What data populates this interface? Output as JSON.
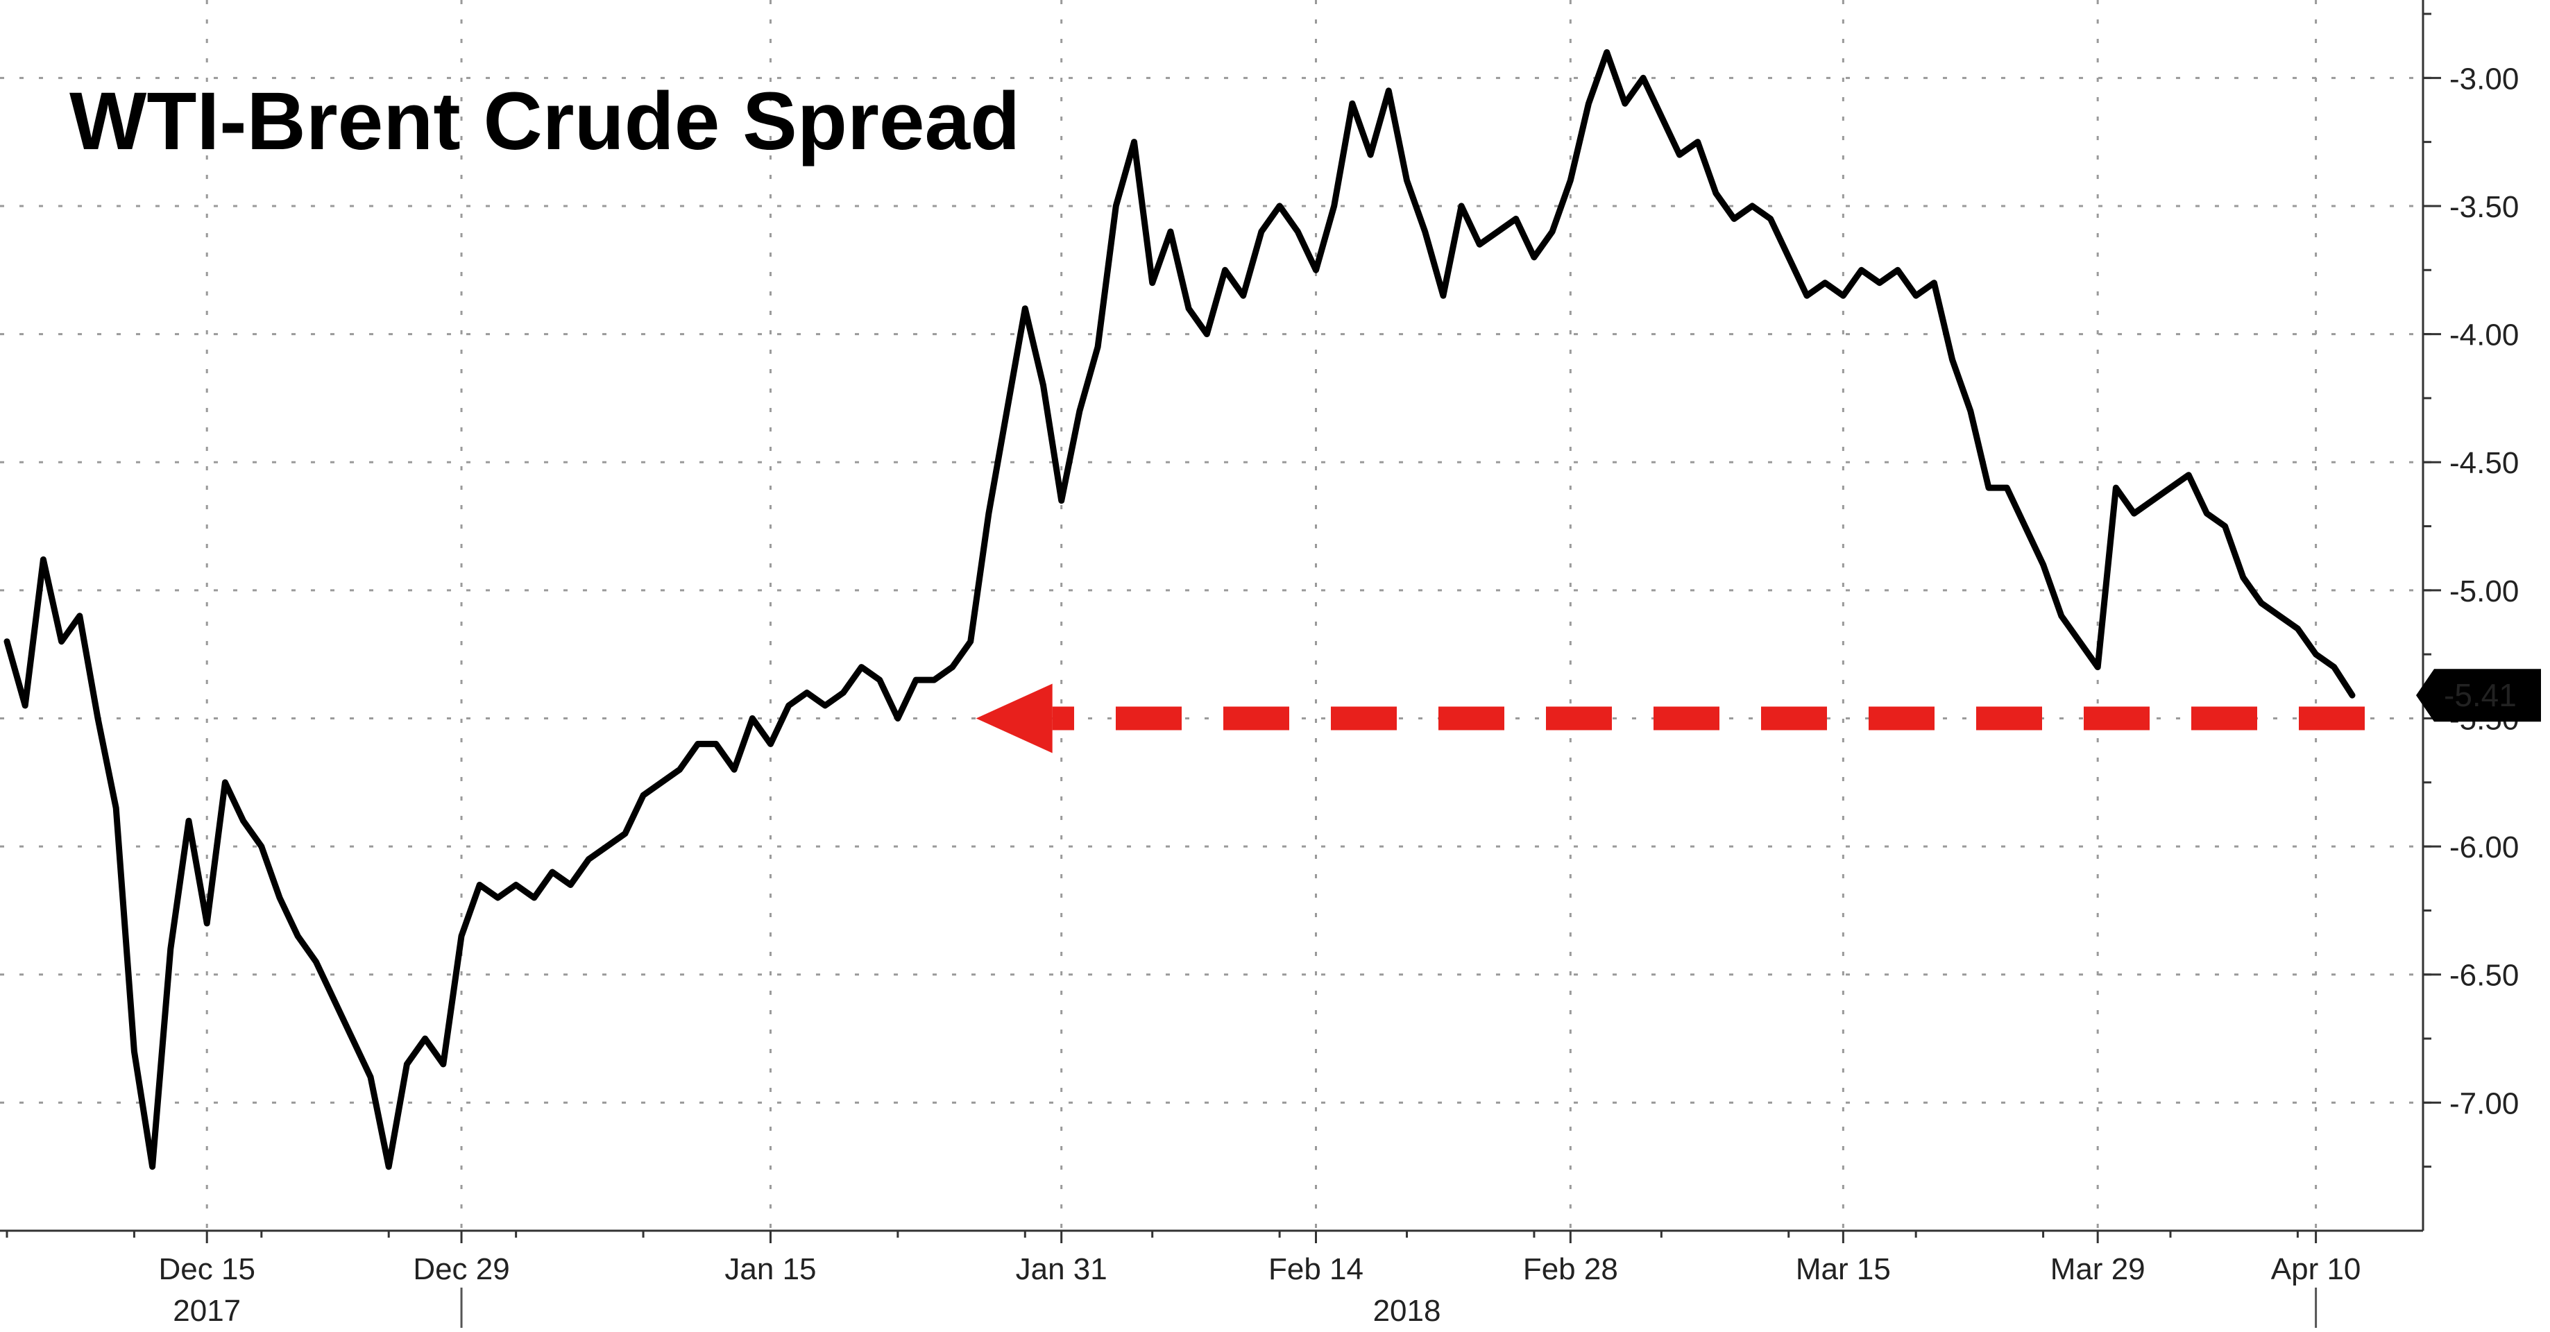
{
  "chart_data": {
    "type": "line",
    "title": "WTI-Brent Crude Spread",
    "xlabel": "",
    "ylabel": "",
    "ylim": [
      -7.5,
      -2.75
    ],
    "y_ticks": [
      -3.0,
      -3.5,
      -4.0,
      -4.5,
      -5.0,
      -5.5,
      -6.0,
      -6.5,
      -7.0
    ],
    "y_tick_labels": [
      "-3.00",
      "-3.50",
      "-4.00",
      "-4.50",
      "-5.00",
      "-5.50",
      "-6.00",
      "-6.50",
      "-7.00"
    ],
    "x_range": [
      "2017-12-04",
      "2018-04-12"
    ],
    "x_ticks": [
      {
        "date": "2017-12-15",
        "label": "Dec 15"
      },
      {
        "date": "2017-12-29",
        "label": "Dec 29"
      },
      {
        "date": "2018-01-15",
        "label": "Jan 15"
      },
      {
        "date": "2018-01-31",
        "label": "Jan 31"
      },
      {
        "date": "2018-02-14",
        "label": "Feb 14"
      },
      {
        "date": "2018-02-28",
        "label": "Feb 28"
      },
      {
        "date": "2018-03-15",
        "label": "Mar 15"
      },
      {
        "date": "2018-03-29",
        "label": "Mar 29"
      },
      {
        "date": "2018-04-10",
        "label": "Apr 10"
      }
    ],
    "year_labels": [
      {
        "date": "2017-12-15",
        "label": "2017"
      },
      {
        "date": "2018-02-19",
        "label": "2018"
      }
    ],
    "grid": true,
    "series": [
      {
        "color": "#000000",
        "points": [
          [
            "2017-12-04",
            -5.2
          ],
          [
            "2017-12-05",
            -5.45
          ],
          [
            "2017-12-06",
            -4.88
          ],
          [
            "2017-12-07",
            -5.2
          ],
          [
            "2017-12-08",
            -5.1
          ],
          [
            "2017-12-09",
            -5.5
          ],
          [
            "2017-12-10",
            -5.85
          ],
          [
            "2017-12-11",
            -6.8
          ],
          [
            "2017-12-12",
            -7.25
          ],
          [
            "2017-12-13",
            -6.4
          ],
          [
            "2017-12-14",
            -5.9
          ],
          [
            "2017-12-15",
            -6.3
          ],
          [
            "2017-12-16",
            -5.75
          ],
          [
            "2017-12-17",
            -5.9
          ],
          [
            "2017-12-18",
            -6.0
          ],
          [
            "2017-12-19",
            -6.2
          ],
          [
            "2017-12-20",
            -6.35
          ],
          [
            "2017-12-21",
            -6.45
          ],
          [
            "2017-12-22",
            -6.6
          ],
          [
            "2017-12-23",
            -6.75
          ],
          [
            "2017-12-24",
            -6.9
          ],
          [
            "2017-12-25",
            -7.25
          ],
          [
            "2017-12-26",
            -6.85
          ],
          [
            "2017-12-27",
            -6.75
          ],
          [
            "2017-12-28",
            -6.85
          ],
          [
            "2017-12-29",
            -6.35
          ],
          [
            "2017-12-30",
            -6.15
          ],
          [
            "2017-12-31",
            -6.2
          ],
          [
            "2018-01-01",
            -6.15
          ],
          [
            "2018-01-02",
            -6.2
          ],
          [
            "2018-01-03",
            -6.1
          ],
          [
            "2018-01-04",
            -6.15
          ],
          [
            "2018-01-05",
            -6.05
          ],
          [
            "2018-01-06",
            -6.0
          ],
          [
            "2018-01-07",
            -5.95
          ],
          [
            "2018-01-08",
            -5.8
          ],
          [
            "2018-01-09",
            -5.75
          ],
          [
            "2018-01-10",
            -5.7
          ],
          [
            "2018-01-11",
            -5.6
          ],
          [
            "2018-01-12",
            -5.6
          ],
          [
            "2018-01-13",
            -5.7
          ],
          [
            "2018-01-14",
            -5.5
          ],
          [
            "2018-01-15",
            -5.6
          ],
          [
            "2018-01-16",
            -5.45
          ],
          [
            "2018-01-17",
            -5.4
          ],
          [
            "2018-01-18",
            -5.45
          ],
          [
            "2018-01-19",
            -5.4
          ],
          [
            "2018-01-20",
            -5.3
          ],
          [
            "2018-01-21",
            -5.35
          ],
          [
            "2018-01-22",
            -5.5
          ],
          [
            "2018-01-23",
            -5.35
          ],
          [
            "2018-01-24",
            -5.35
          ],
          [
            "2018-01-25",
            -5.3
          ],
          [
            "2018-01-26",
            -5.2
          ],
          [
            "2018-01-27",
            -4.7
          ],
          [
            "2018-01-28",
            -4.3
          ],
          [
            "2018-01-29",
            -3.9
          ],
          [
            "2018-01-30",
            -4.2
          ],
          [
            "2018-01-31",
            -4.65
          ],
          [
            "2018-02-01",
            -4.3
          ],
          [
            "2018-02-02",
            -4.05
          ],
          [
            "2018-02-03",
            -3.5
          ],
          [
            "2018-02-04",
            -3.25
          ],
          [
            "2018-02-05",
            -3.8
          ],
          [
            "2018-02-06",
            -3.6
          ],
          [
            "2018-02-07",
            -3.9
          ],
          [
            "2018-02-08",
            -4.0
          ],
          [
            "2018-02-09",
            -3.75
          ],
          [
            "2018-02-10",
            -3.85
          ],
          [
            "2018-02-11",
            -3.6
          ],
          [
            "2018-02-12",
            -3.5
          ],
          [
            "2018-02-13",
            -3.6
          ],
          [
            "2018-02-14",
            -3.75
          ],
          [
            "2018-02-15",
            -3.5
          ],
          [
            "2018-02-16",
            -3.1
          ],
          [
            "2018-02-17",
            -3.3
          ],
          [
            "2018-02-18",
            -3.05
          ],
          [
            "2018-02-19",
            -3.4
          ],
          [
            "2018-02-20",
            -3.6
          ],
          [
            "2018-02-21",
            -3.85
          ],
          [
            "2018-02-22",
            -3.5
          ],
          [
            "2018-02-23",
            -3.65
          ],
          [
            "2018-02-24",
            -3.6
          ],
          [
            "2018-02-25",
            -3.55
          ],
          [
            "2018-02-26",
            -3.7
          ],
          [
            "2018-02-27",
            -3.6
          ],
          [
            "2018-02-28",
            -3.4
          ],
          [
            "2018-03-01",
            -3.1
          ],
          [
            "2018-03-02",
            -2.9
          ],
          [
            "2018-03-03",
            -3.1
          ],
          [
            "2018-03-04",
            -3.0
          ],
          [
            "2018-03-05",
            -3.15
          ],
          [
            "2018-03-06",
            -3.3
          ],
          [
            "2018-03-07",
            -3.25
          ],
          [
            "2018-03-08",
            -3.45
          ],
          [
            "2018-03-09",
            -3.55
          ],
          [
            "2018-03-10",
            -3.5
          ],
          [
            "2018-03-11",
            -3.55
          ],
          [
            "2018-03-12",
            -3.7
          ],
          [
            "2018-03-13",
            -3.85
          ],
          [
            "2018-03-14",
            -3.8
          ],
          [
            "2018-03-15",
            -3.85
          ],
          [
            "2018-03-16",
            -3.75
          ],
          [
            "2018-03-17",
            -3.8
          ],
          [
            "2018-03-18",
            -3.75
          ],
          [
            "2018-03-19",
            -3.85
          ],
          [
            "2018-03-20",
            -3.8
          ],
          [
            "2018-03-21",
            -4.1
          ],
          [
            "2018-03-22",
            -4.3
          ],
          [
            "2018-03-23",
            -4.6
          ],
          [
            "2018-03-24",
            -4.6
          ],
          [
            "2018-03-25",
            -4.75
          ],
          [
            "2018-03-26",
            -4.9
          ],
          [
            "2018-03-27",
            -5.1
          ],
          [
            "2018-03-28",
            -5.2
          ],
          [
            "2018-03-29",
            -5.3
          ],
          [
            "2018-03-30",
            -4.6
          ],
          [
            "2018-03-31",
            -4.7
          ],
          [
            "2018-04-01",
            -4.65
          ],
          [
            "2018-04-02",
            -4.6
          ],
          [
            "2018-04-03",
            -4.55
          ],
          [
            "2018-04-04",
            -4.7
          ],
          [
            "2018-04-05",
            -4.75
          ],
          [
            "2018-04-06",
            -4.95
          ],
          [
            "2018-04-07",
            -5.05
          ],
          [
            "2018-04-08",
            -5.1
          ],
          [
            "2018-04-09",
            -5.15
          ],
          [
            "2018-04-10",
            -5.25
          ],
          [
            "2018-04-11",
            -5.3
          ],
          [
            "2018-04-12",
            -5.41
          ]
        ]
      }
    ],
    "last_value": -5.41,
    "last_value_label": "-5.41",
    "annotation": {
      "type": "dashed-arrow",
      "color": "#e8201c",
      "from_date": "2018-04-12",
      "to_date": "2018-01-26",
      "value": -5.5
    }
  }
}
